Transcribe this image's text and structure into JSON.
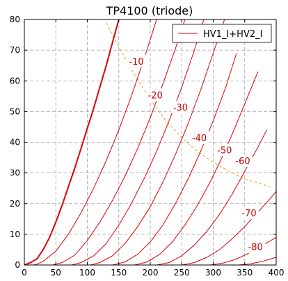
{
  "chart_data": {
    "type": "line",
    "title": "TP4100 (triode)",
    "xlabel": "",
    "ylabel": "",
    "xlim": [
      0,
      400
    ],
    "ylim": [
      0,
      80
    ],
    "x_ticks": [
      0,
      50,
      100,
      150,
      200,
      250,
      300,
      350,
      400
    ],
    "y_ticks": [
      0,
      10,
      20,
      30,
      40,
      50,
      60,
      70,
      80
    ],
    "grid": true,
    "legend": {
      "position": "top-right",
      "entries": [
        "HV1_I+HV2_I"
      ]
    },
    "series_color": "#dd0000",
    "load_line_color": "#e8a000",
    "series": [
      {
        "grid_voltage": "0",
        "values": [
          [
            0,
            0
          ],
          [
            10,
            0.8
          ],
          [
            20,
            2
          ],
          [
            30,
            5
          ],
          [
            40,
            9
          ],
          [
            50,
            14
          ],
          [
            60,
            19.5
          ],
          [
            70,
            25.5
          ],
          [
            80,
            31.5
          ],
          [
            90,
            38
          ],
          [
            100,
            44.5
          ],
          [
            110,
            51
          ],
          [
            120,
            58
          ],
          [
            130,
            65
          ],
          [
            140,
            72.5
          ],
          [
            150,
            80
          ]
        ]
      },
      {
        "grid_voltage": "-10",
        "values": [
          [
            15,
            0
          ],
          [
            20,
            0.3
          ],
          [
            30,
            1.2
          ],
          [
            50,
            4.5
          ],
          [
            70,
            10
          ],
          [
            90,
            17
          ],
          [
            110,
            25
          ],
          [
            130,
            34
          ],
          [
            150,
            44
          ],
          [
            170,
            55
          ],
          [
            190,
            67
          ],
          [
            210,
            80
          ]
        ]
      },
      {
        "grid_voltage": "-20",
        "values": [
          [
            45,
            0
          ],
          [
            60,
            0.8
          ],
          [
            80,
            3.2
          ],
          [
            100,
            8
          ],
          [
            120,
            14
          ],
          [
            140,
            21
          ],
          [
            160,
            29
          ],
          [
            180,
            38
          ],
          [
            200,
            48
          ],
          [
            220,
            59
          ],
          [
            240,
            70.5
          ],
          [
            255,
            80
          ]
        ]
      },
      {
        "grid_voltage": "-30",
        "values": [
          [
            75,
            0
          ],
          [
            90,
            0.8
          ],
          [
            110,
            3
          ],
          [
            130,
            7
          ],
          [
            150,
            13
          ],
          [
            170,
            20
          ],
          [
            190,
            28
          ],
          [
            210,
            37
          ],
          [
            230,
            47
          ],
          [
            250,
            58
          ],
          [
            270,
            70
          ],
          [
            285,
            80
          ]
        ]
      },
      {
        "grid_voltage": "-40",
        "values": [
          [
            105,
            0
          ],
          [
            120,
            0.8
          ],
          [
            140,
            3
          ],
          [
            160,
            7
          ],
          [
            180,
            12.5
          ],
          [
            200,
            19
          ],
          [
            220,
            27
          ],
          [
            240,
            36
          ],
          [
            260,
            46
          ],
          [
            280,
            57
          ],
          [
            300,
            69
          ],
          [
            318,
            80
          ]
        ]
      },
      {
        "grid_voltage": "-50",
        "values": [
          [
            140,
            0
          ],
          [
            160,
            1
          ],
          [
            180,
            3.5
          ],
          [
            200,
            7.5
          ],
          [
            220,
            13
          ],
          [
            240,
            20
          ],
          [
            260,
            28
          ],
          [
            280,
            37
          ],
          [
            300,
            47
          ],
          [
            320,
            58
          ],
          [
            337,
            69
          ]
        ]
      },
      {
        "grid_voltage": "-60",
        "values": [
          [
            175,
            0
          ],
          [
            195,
            1
          ],
          [
            215,
            3.5
          ],
          [
            235,
            7.5
          ],
          [
            255,
            13
          ],
          [
            275,
            19.5
          ],
          [
            295,
            27
          ],
          [
            315,
            35.5
          ],
          [
            335,
            45
          ],
          [
            355,
            55
          ],
          [
            371,
            63
          ]
        ]
      },
      {
        "grid_voltage": "-70",
        "values": [
          [
            210,
            0
          ],
          [
            230,
            0.8
          ],
          [
            250,
            3
          ],
          [
            270,
            6.5
          ],
          [
            290,
            11
          ],
          [
            310,
            16.5
          ],
          [
            330,
            23
          ],
          [
            350,
            30.5
          ],
          [
            370,
            38
          ],
          [
            385,
            44
          ]
        ]
      },
      {
        "grid_voltage": "-80",
        "values": [
          [
            250,
            0
          ],
          [
            270,
            0.8
          ],
          [
            290,
            2.5
          ],
          [
            310,
            5
          ],
          [
            330,
            8.5
          ],
          [
            350,
            12.5
          ],
          [
            370,
            17
          ],
          [
            390,
            21.5
          ],
          [
            400,
            24
          ]
        ]
      },
      {
        "grid_voltage": "-90",
        "values": [
          [
            295,
            0
          ],
          [
            315,
            0.6
          ],
          [
            335,
            1.8
          ],
          [
            355,
            3.7
          ],
          [
            375,
            6
          ],
          [
            400,
            9
          ]
        ]
      },
      {
        "grid_voltage": "-100",
        "values": [
          [
            340,
            0
          ],
          [
            360,
            0.4
          ],
          [
            380,
            1.3
          ],
          [
            400,
            2.5
          ]
        ]
      }
    ],
    "bold_series_index": 0,
    "load_line": [
      [
        130,
        79
      ],
      [
        150,
        71
      ],
      [
        175,
        62
      ],
      [
        200,
        54
      ],
      [
        225,
        47
      ],
      [
        250,
        41.5
      ],
      [
        275,
        37
      ],
      [
        300,
        33.5
      ],
      [
        325,
        30.5
      ],
      [
        350,
        28
      ],
      [
        375,
        26.5
      ],
      [
        390,
        25.5
      ]
    ],
    "annotations": [
      {
        "text": "-10",
        "x": 178,
        "y": 66
      },
      {
        "text": "-20",
        "x": 208,
        "y": 55
      },
      {
        "text": "-30",
        "x": 248,
        "y": 51
      },
      {
        "text": "-40",
        "x": 278,
        "y": 41
      },
      {
        "text": "-50",
        "x": 318,
        "y": 37
      },
      {
        "text": "-60",
        "x": 347,
        "y": 33.5
      },
      {
        "text": "-70",
        "x": 357,
        "y": 16.5
      },
      {
        "text": "-80",
        "x": 367,
        "y": 5.5
      }
    ]
  }
}
